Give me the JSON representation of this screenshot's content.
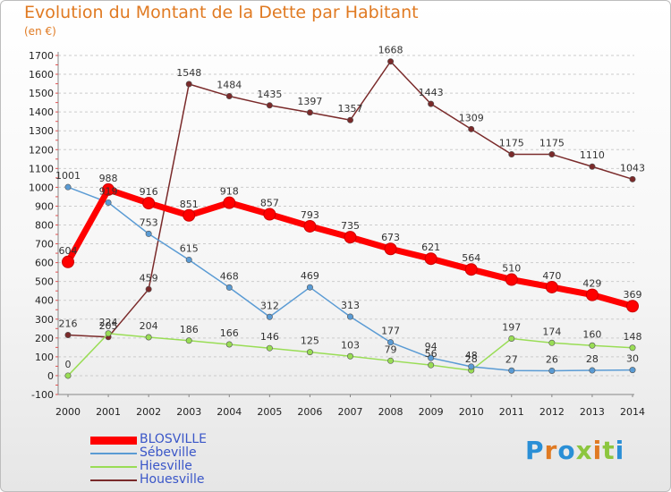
{
  "header": {
    "title": "Evolution du Montant de la Dette par Habitant",
    "unit": "(en €)"
  },
  "brand": {
    "name": "Proxiti"
  },
  "chart_data": {
    "type": "line",
    "title": "Evolution du Montant de la Dette par Habitant",
    "ylabel": "(en €)",
    "xlabel": "",
    "categories": [
      "2000",
      "2001",
      "2002",
      "2003",
      "2004",
      "2005",
      "2006",
      "2007",
      "2008",
      "2009",
      "2010",
      "2011",
      "2012",
      "2013",
      "2014"
    ],
    "ylim": [
      -100,
      1700
    ],
    "yticks": [
      -100,
      0,
      100,
      200,
      300,
      400,
      500,
      600,
      700,
      800,
      900,
      1000,
      1100,
      1200,
      1300,
      1400,
      1500,
      1600,
      1700
    ],
    "grid": "horizontal dashed",
    "legend_position": "bottom-left",
    "series": [
      {
        "name": "BLOSVILLE",
        "color": "#ff0000",
        "values": [
          604,
          988,
          916,
          851,
          918,
          857,
          793,
          735,
          673,
          621,
          564,
          510,
          470,
          429,
          369
        ]
      },
      {
        "name": "Sébeville",
        "color": "#5a9bd4",
        "values": [
          1001,
          919,
          753,
          615,
          468,
          312,
          469,
          313,
          177,
          94,
          48,
          27,
          26,
          28,
          30
        ]
      },
      {
        "name": "Hiesville",
        "color": "#99dd55",
        "values": [
          0,
          224,
          204,
          186,
          166,
          146,
          125,
          103,
          79,
          56,
          28,
          197,
          174,
          160,
          148
        ]
      },
      {
        "name": "Houesville",
        "color": "#7a2a2a",
        "values": [
          216,
          205,
          459,
          1548,
          1484,
          1435,
          1397,
          1357,
          1668,
          1443,
          1309,
          1175,
          1175,
          1110,
          1043
        ]
      }
    ]
  }
}
